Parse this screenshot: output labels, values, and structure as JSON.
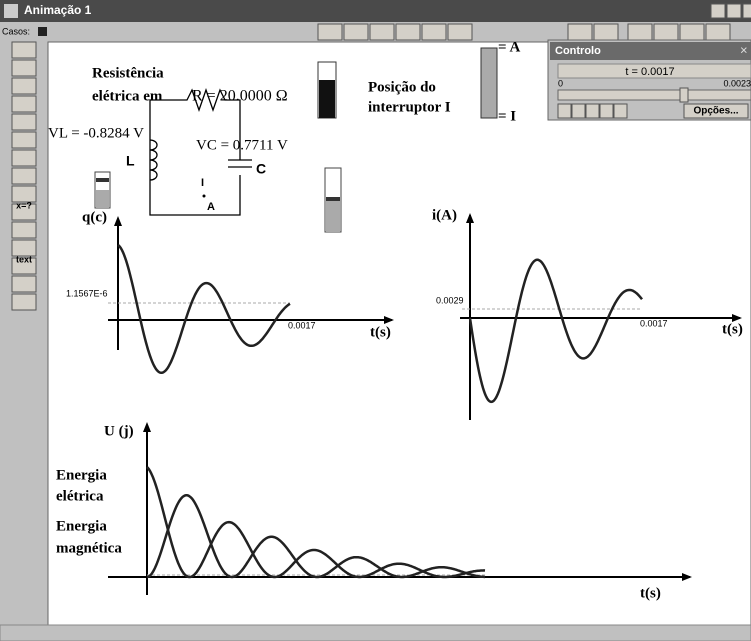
{
  "window": {
    "title": "Animação 1"
  },
  "toolbar": {
    "cases": "Casos:"
  },
  "palette": {
    "items": [
      "x=?",
      "text"
    ]
  },
  "circuit": {
    "title_line1": "Resistência",
    "title_line2": "elétrica em",
    "resistance": "R = 20.0000 Ω",
    "vl": "VL = -0.8284 V",
    "vc": "VC = 0.7711 V",
    "inductor": "L",
    "capacitor": "C",
    "switch_i": "I",
    "switch_a": "A"
  },
  "switch": {
    "label_line1": "Posição do",
    "label_line2": "interruptor I",
    "pos_a": "= A",
    "pos_i": "= I"
  },
  "control": {
    "title": "Controlo",
    "time": "t = 0.0017",
    "min": "0",
    "max": "0.0023",
    "options": "Opções..."
  },
  "graphs": [
    {
      "y_label": "q(c)",
      "y_value": "1.1567E-6",
      "x_value": "0.0017",
      "x_label": "t(s)"
    },
    {
      "y_label": "i(A)",
      "y_value": "0.0029",
      "x_value": "0.0017",
      "x_label": "t(s)"
    },
    {
      "y_label": "U (j)",
      "legend": [
        "Energia",
        "elétrica",
        "Energia",
        "magnética"
      ],
      "x_label": "t(s)"
    }
  ]
}
